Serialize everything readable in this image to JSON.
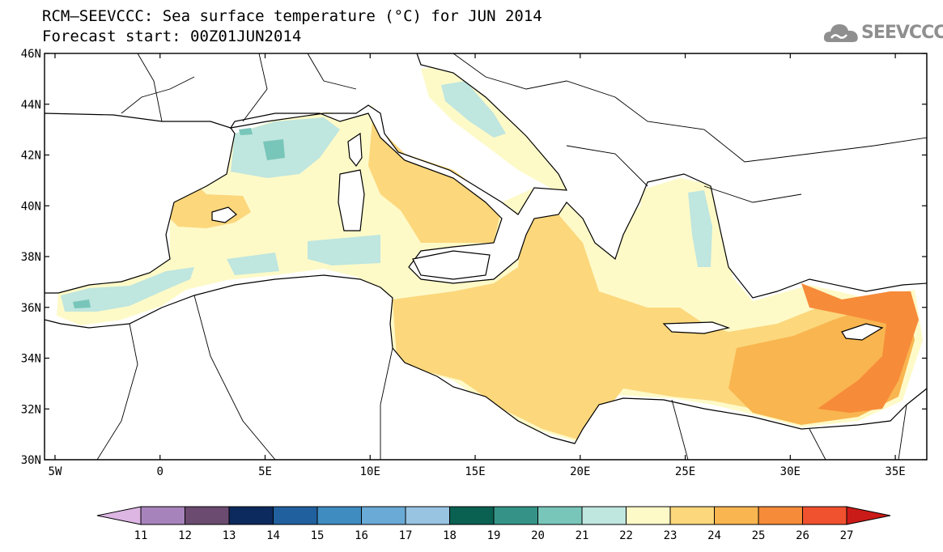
{
  "title": {
    "line1": "RCM–SEEVCCC: Sea surface temperature (°C) for JUN 2014",
    "line2": "Forecast start: 00Z01JUN2014"
  },
  "logo": {
    "text": "SEEVCCC",
    "icon": "cloud-icon",
    "color": "#8f8f8f"
  },
  "map": {
    "lon_range": [
      -5.5,
      36.5
    ],
    "lat_range": [
      30,
      46
    ],
    "lon_ticks": [
      "5W",
      "0",
      "5E",
      "10E",
      "15E",
      "20E",
      "25E",
      "30E",
      "35E"
    ],
    "lat_ticks": [
      "46N",
      "44N",
      "42N",
      "40N",
      "38N",
      "36N",
      "34N",
      "32N",
      "30N"
    ]
  },
  "colorbar": {
    "labels": [
      "11",
      "12",
      "13",
      "14",
      "15",
      "16",
      "17",
      "18",
      "19",
      "20",
      "21",
      "22",
      "23",
      "24",
      "25",
      "26",
      "27"
    ],
    "colors": [
      "#ddb6e4",
      "#a783bb",
      "#6b4b70",
      "#0d2a5e",
      "#20609e",
      "#3f8cc1",
      "#6aaad6",
      "#98c4e2",
      "#0a6152",
      "#349386",
      "#78c6b9",
      "#bfe6df",
      "#fefac8",
      "#fcd77c",
      "#f9b54f",
      "#f68b39",
      "#f0512e",
      "#cb1b18"
    ]
  }
}
